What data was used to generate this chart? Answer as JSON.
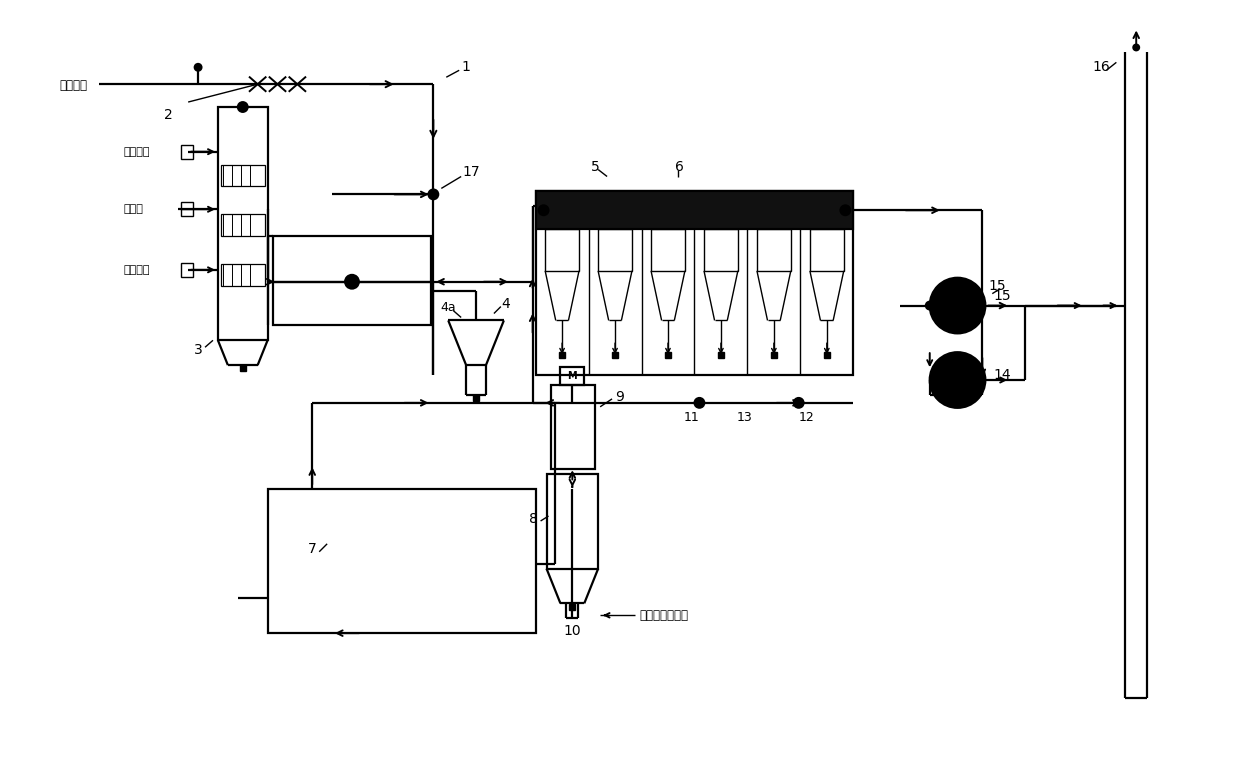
{
  "bg_color": "#ffffff",
  "line_color": "#000000",
  "labels": {
    "yan_qi": "烟气接口",
    "ya_suo_kong_qi_1": "压缩空气",
    "gong_ye_shui": "工业水",
    "ya_suo_kong_qi_2": "压缩空气",
    "qing_hua_gai": "氢氧化钙溶液浩",
    "n1": "1",
    "n2": "2",
    "n3": "3",
    "n4": "4",
    "n4a": "4a",
    "n5": "5",
    "n6": "6",
    "n7": "7",
    "n8": "8",
    "n9": "9",
    "n10": "10",
    "n11": "11",
    "n12": "12",
    "n13": "13",
    "n14": "14",
    "n15": "15",
    "n16": "16",
    "n17": "17"
  }
}
